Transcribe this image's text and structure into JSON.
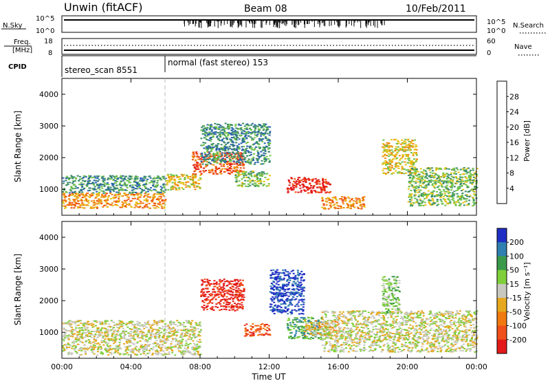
{
  "header": {
    "station": "Unwin (fitACF)",
    "beam": "Beam 08",
    "date": "10/Feb/2011"
  },
  "nsky_panel": {
    "label": "N.Sky",
    "left_ticks": [
      "10^5",
      "10^0"
    ],
    "right_ticks": [
      "10^5",
      "10^0"
    ],
    "right_label": "N.Search",
    "right_legend_style": "dotted"
  },
  "freq_panel": {
    "label_line1": "Freq.",
    "label_line2": "[MHz]",
    "left_ticks": [
      "18",
      "8"
    ],
    "right_ticks": [
      "60",
      "0"
    ],
    "right_label": "Nave",
    "right_legend_style": "dotted"
  },
  "cpid_panel": {
    "label": "CPID",
    "segments": [
      {
        "name": "stereo_scan 8551",
        "start_hour": 0
      },
      {
        "name": "normal (fast stereo) 153",
        "start_hour": 6
      }
    ]
  },
  "time_axis": {
    "title": "Time UT",
    "ticks": [
      "00:00",
      "04:00",
      "08:00",
      "12:00",
      "16:00",
      "20:00",
      "00:00"
    ],
    "range_hours": [
      0,
      24
    ]
  },
  "power_panel": {
    "ylabel": "Slant Range [km]",
    "yticks": [
      "1000",
      "2000",
      "3000",
      "4000"
    ],
    "colorbar_title": "Power [dB]",
    "colorbar_ticks": [
      "4",
      "8",
      "12",
      "16",
      "20",
      "24",
      "28"
    ],
    "colors": [
      "#1430e6",
      "#2a62b0",
      "#3a8a6a",
      "#6fc24a",
      "#e6c21a",
      "#f08a10",
      "#f05010",
      "#e31a1a"
    ]
  },
  "velocity_panel": {
    "ylabel": "Slant Range [km]",
    "yticks": [
      "1000",
      "2000",
      "3000",
      "4000"
    ],
    "colorbar_title": "Velocity [m s⁻¹]",
    "colorbar_ticks": [
      "200",
      "100",
      "50",
      "15",
      "-15",
      "-50",
      "-100",
      "-200"
    ],
    "colors": [
      "#1f2fc4",
      "#2f7fb0",
      "#3a9a4a",
      "#7fcf3a",
      "#c8c8c0",
      "#e6a81e",
      "#f07a10",
      "#f0501a",
      "#e31a1a"
    ]
  },
  "chart_data": {
    "type": "heatmap",
    "x_units": "hours UT",
    "y_units": "km",
    "xlim": [
      0,
      24
    ],
    "ylim": [
      180,
      4500
    ],
    "cpid_change_hour": 6,
    "power_regions": [
      {
        "x0": 0.0,
        "x1": 6.0,
        "y0": 420,
        "y1": 900,
        "level": 5
      },
      {
        "x0": 0.0,
        "x1": 6.0,
        "y0": 900,
        "y1": 1450,
        "level": 2
      },
      {
        "x0": 6.0,
        "x1": 8.0,
        "y0": 1000,
        "y1": 1500,
        "level": 4
      },
      {
        "x0": 7.5,
        "x1": 10.5,
        "y0": 1500,
        "y1": 2200,
        "level": 6
      },
      {
        "x0": 8.0,
        "x1": 12.0,
        "y0": 1800,
        "y1": 3100,
        "level": 2
      },
      {
        "x0": 10.0,
        "x1": 12.0,
        "y0": 1100,
        "y1": 1600,
        "level": 3
      },
      {
        "x0": 13.0,
        "x1": 15.5,
        "y0": 900,
        "y1": 1400,
        "level": 7
      },
      {
        "x0": 15.0,
        "x1": 17.5,
        "y0": 400,
        "y1": 800,
        "level": 5
      },
      {
        "x0": 18.5,
        "x1": 20.5,
        "y0": 1500,
        "y1": 2600,
        "level": 4
      },
      {
        "x0": 20.0,
        "x1": 24.0,
        "y0": 500,
        "y1": 1700,
        "level": 3
      }
    ],
    "velocity_regions": [
      {
        "x0": 0.0,
        "x1": 8.0,
        "y0": 300,
        "y1": 1400,
        "level": 4
      },
      {
        "x0": 8.0,
        "x1": 10.5,
        "y0": 1700,
        "y1": 2700,
        "level": 8
      },
      {
        "x0": 10.5,
        "x1": 12.0,
        "y0": 900,
        "y1": 1300,
        "level": 7
      },
      {
        "x0": 12.0,
        "x1": 14.0,
        "y0": 1600,
        "y1": 3000,
        "level": 0
      },
      {
        "x0": 13.0,
        "x1": 15.0,
        "y0": 800,
        "y1": 1500,
        "level": 2
      },
      {
        "x0": 14.0,
        "x1": 16.0,
        "y0": 900,
        "y1": 1400,
        "level": 5
      },
      {
        "x0": 15.0,
        "x1": 24.0,
        "y0": 400,
        "y1": 1700,
        "level": 4
      },
      {
        "x0": 18.5,
        "x1": 19.5,
        "y0": 1600,
        "y1": 2800,
        "level": 3
      }
    ]
  }
}
